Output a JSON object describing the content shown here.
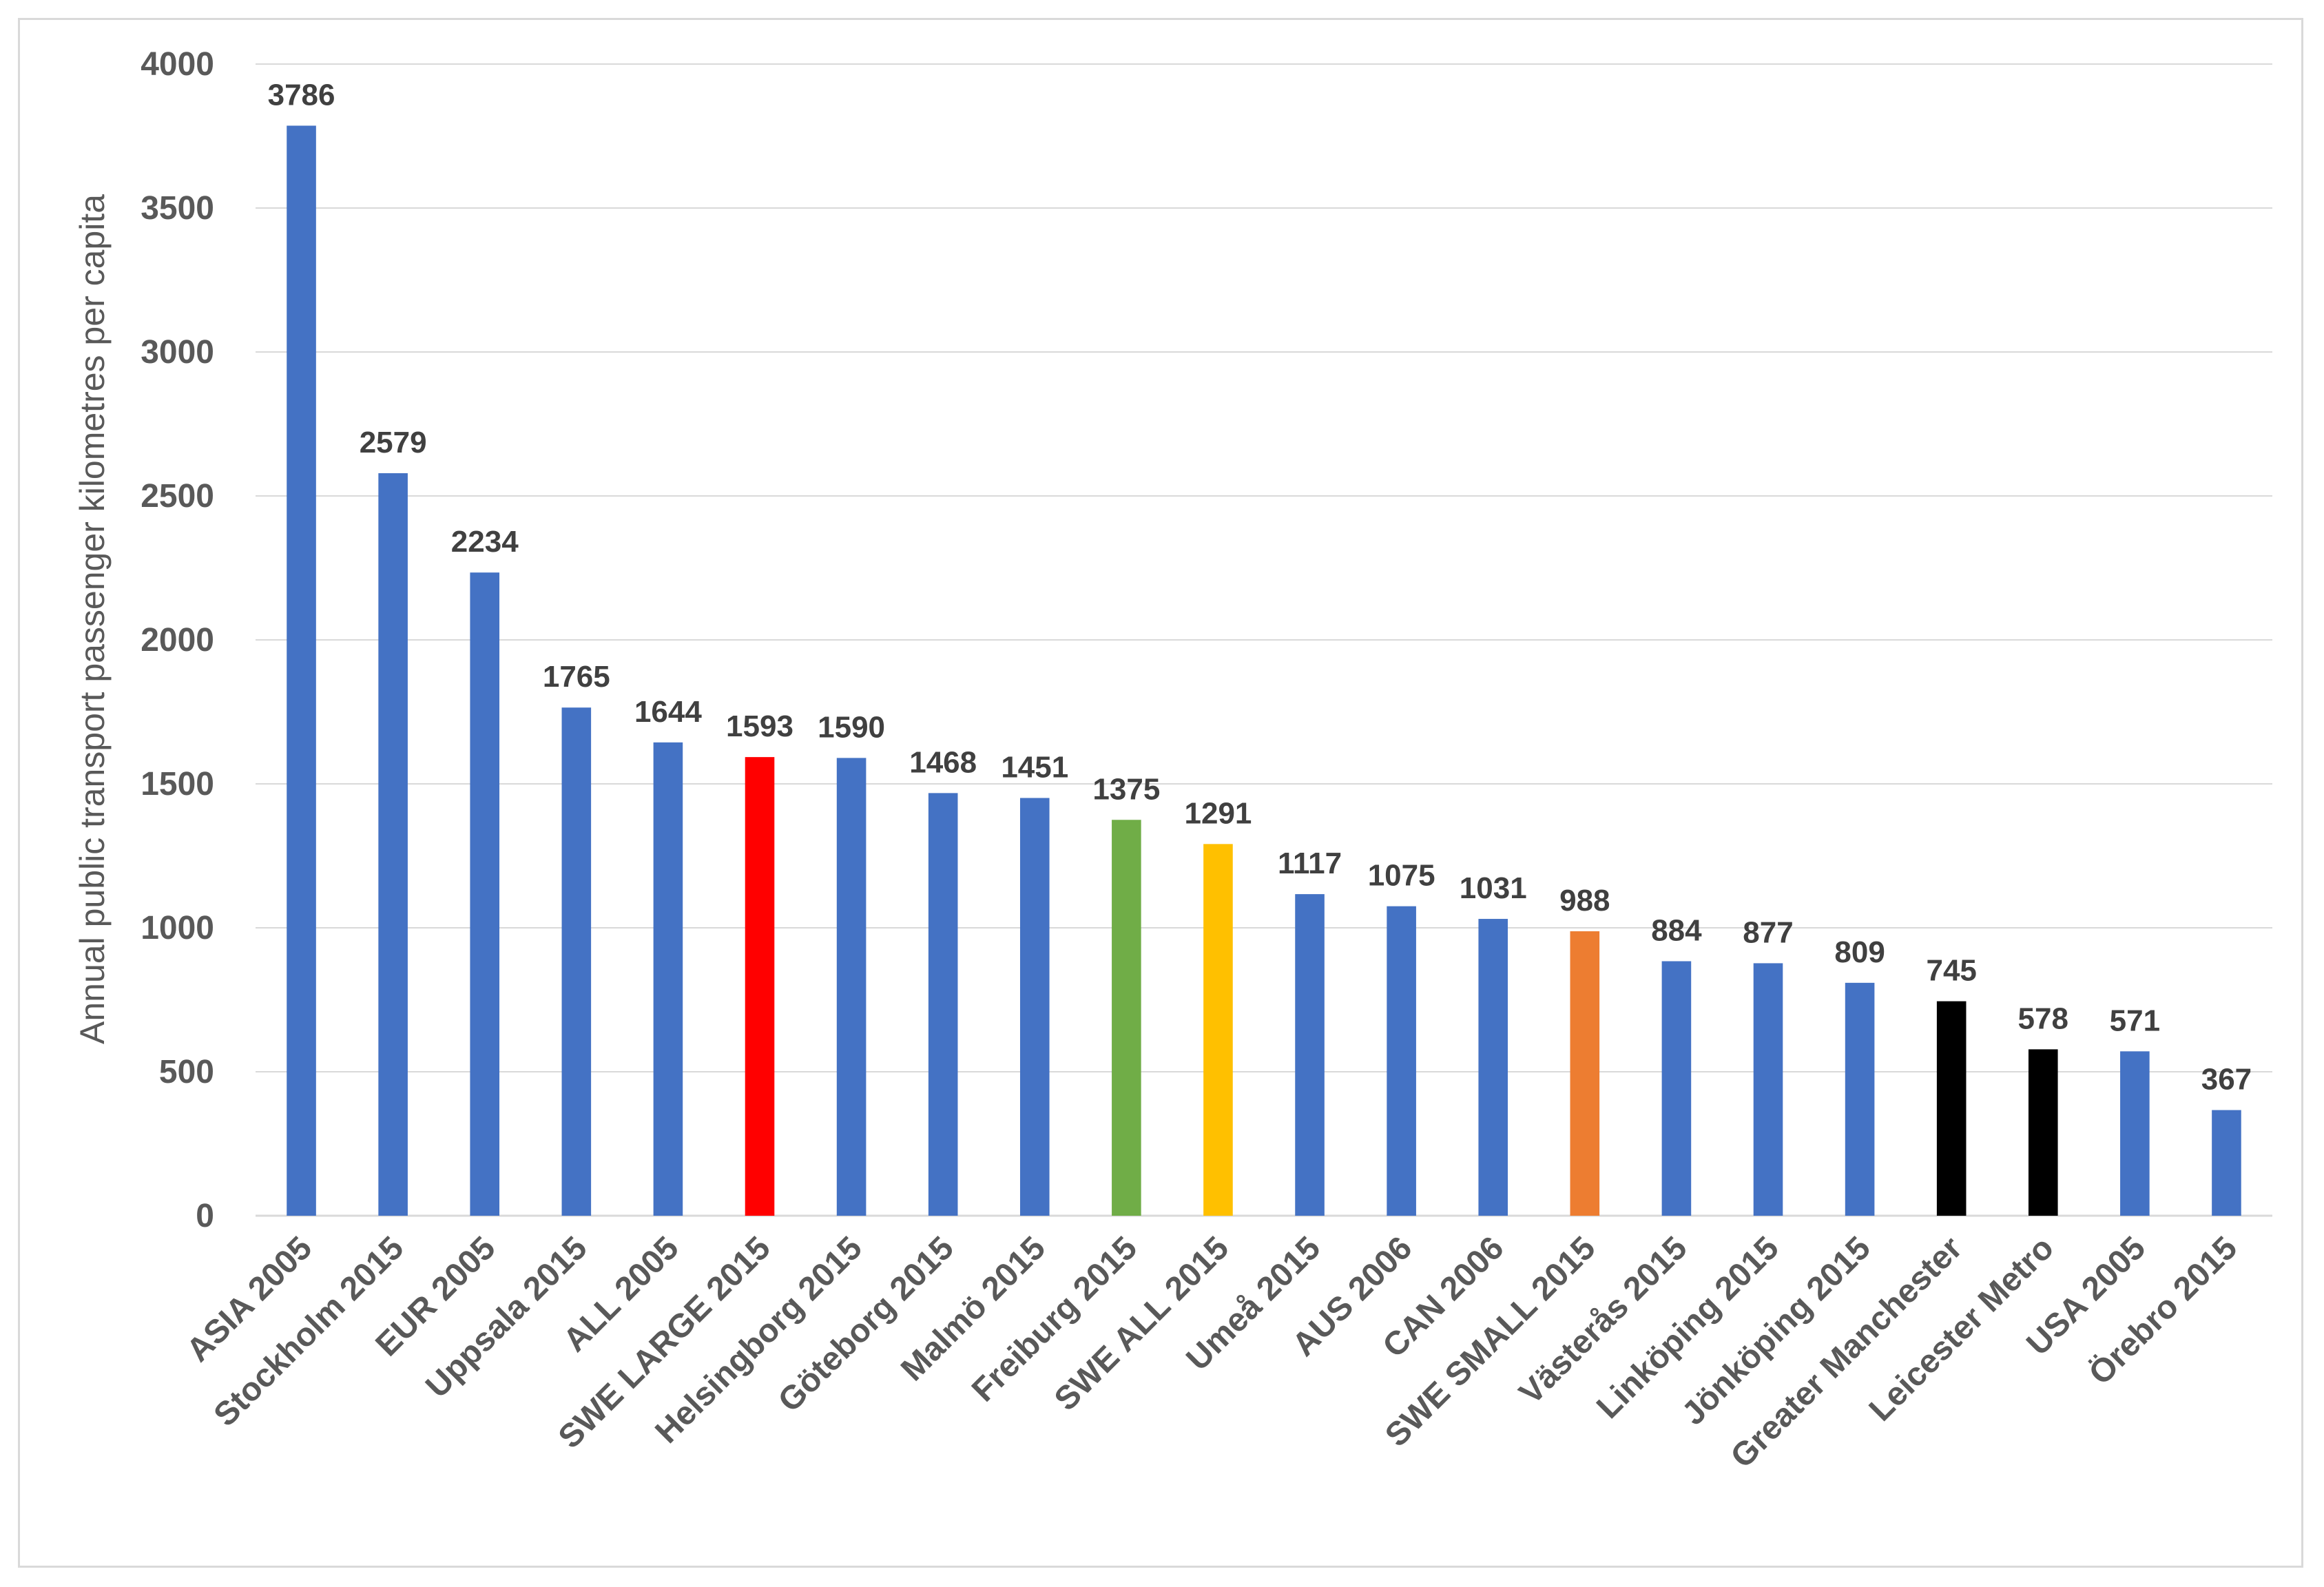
{
  "chart_data": {
    "type": "bar",
    "title": "",
    "xlabel": "",
    "ylabel": "Annual public transport  passenger kilometres per capita",
    "ylim": [
      0,
      4000
    ],
    "yticks": [
      0,
      500,
      1000,
      1500,
      2000,
      2500,
      3000,
      3500,
      4000
    ],
    "grid": true,
    "legend": "none",
    "categories": [
      "ASIA 2005",
      "Stockholm 2015",
      "EUR 2005",
      "Uppsala 2015",
      "ALL 2005",
      "SWE LARGE 2015",
      "Helsingborg 2015",
      "Göteborg 2015",
      "Malmö 2015",
      "Freiburg 2015",
      "SWE ALL 2015",
      "Umeå 2015",
      "AUS 2006",
      "CAN 2006",
      "SWE SMALL 2015",
      "Västerås 2015",
      "Linköping 2015",
      "Jönköping 2015",
      "Greater Manchester",
      "Leicester Metro",
      "USA 2005",
      "Örebro 2015"
    ],
    "values": [
      3786,
      2579,
      2234,
      1765,
      1644,
      1593,
      1590,
      1468,
      1451,
      1375,
      1291,
      1117,
      1075,
      1031,
      988,
      884,
      877,
      809,
      745,
      578,
      571,
      367
    ],
    "colors": [
      "#4472c4",
      "#4472c4",
      "#4472c4",
      "#4472c4",
      "#4472c4",
      "#ff0000",
      "#4472c4",
      "#4472c4",
      "#4472c4",
      "#70ad47",
      "#ffc000",
      "#4472c4",
      "#4472c4",
      "#4472c4",
      "#ed7d31",
      "#4472c4",
      "#4472c4",
      "#4472c4",
      "#000000",
      "#000000",
      "#4472c4",
      "#4472c4"
    ]
  }
}
